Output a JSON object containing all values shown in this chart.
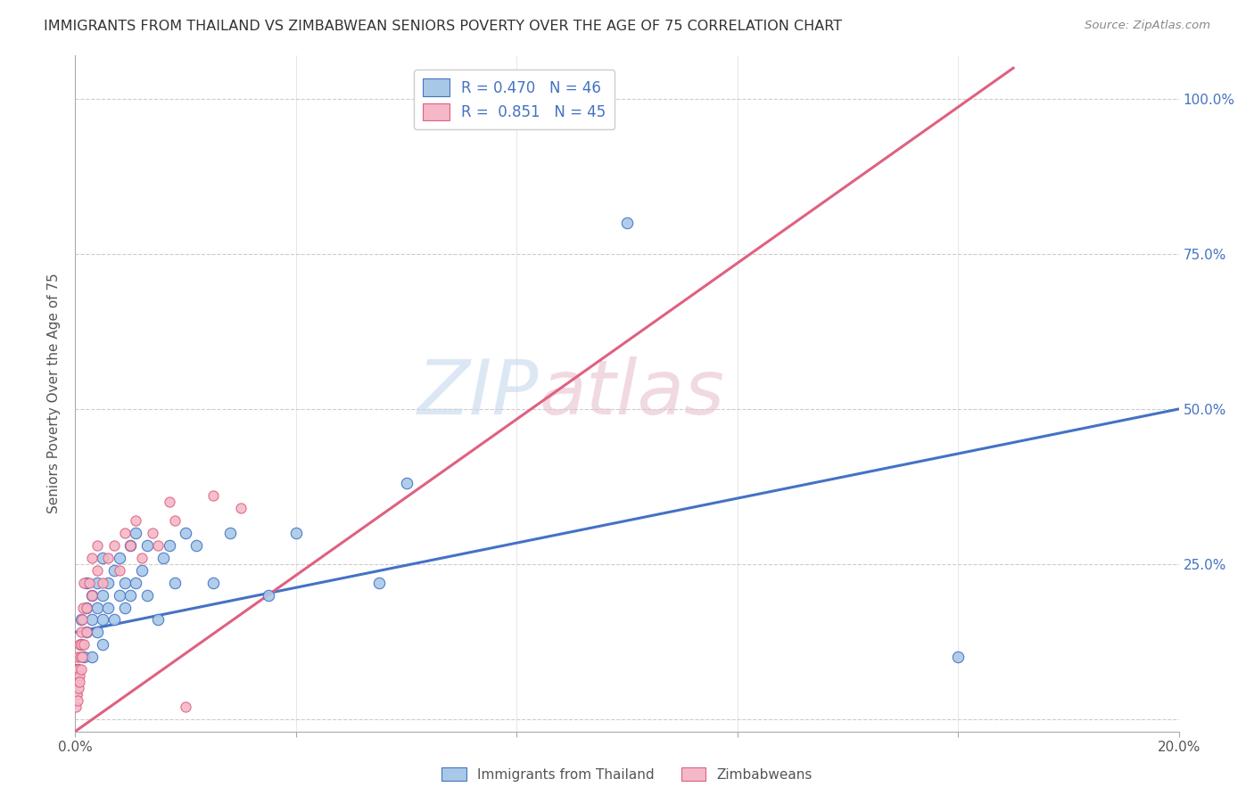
{
  "title": "IMMIGRANTS FROM THAILAND VS ZIMBABWEAN SENIORS POVERTY OVER THE AGE OF 75 CORRELATION CHART",
  "source_text": "Source: ZipAtlas.com",
  "ylabel": "Seniors Poverty Over the Age of 75",
  "legend_labels": [
    "Immigrants from Thailand",
    "Zimbabweans"
  ],
  "R_thailand": 0.47,
  "N_thailand": 46,
  "R_zimbabwe": 0.851,
  "N_zimbabwe": 45,
  "blue_scatter_color": "#a8c8e8",
  "pink_scatter_color": "#f4b8c8",
  "blue_line_color": "#4472c4",
  "pink_line_color": "#e06080",
  "right_axis_color": "#4472c4",
  "xlim": [
    0.0,
    0.2
  ],
  "ylim": [
    -0.02,
    1.07
  ],
  "yticks": [
    0.0,
    0.25,
    0.5,
    0.75,
    1.0
  ],
  "xticks": [
    0.0,
    0.04,
    0.08,
    0.12,
    0.16,
    0.2
  ],
  "thailand_x": [
    0.0005,
    0.001,
    0.001,
    0.0015,
    0.002,
    0.002,
    0.002,
    0.003,
    0.003,
    0.003,
    0.004,
    0.004,
    0.004,
    0.005,
    0.005,
    0.005,
    0.005,
    0.006,
    0.006,
    0.007,
    0.007,
    0.008,
    0.008,
    0.009,
    0.009,
    0.01,
    0.01,
    0.011,
    0.011,
    0.012,
    0.013,
    0.013,
    0.015,
    0.016,
    0.017,
    0.018,
    0.02,
    0.022,
    0.025,
    0.028,
    0.035,
    0.04,
    0.055,
    0.06,
    0.1,
    0.16
  ],
  "thailand_y": [
    0.08,
    0.12,
    0.16,
    0.1,
    0.14,
    0.18,
    0.22,
    0.1,
    0.16,
    0.2,
    0.14,
    0.18,
    0.22,
    0.12,
    0.16,
    0.2,
    0.26,
    0.18,
    0.22,
    0.16,
    0.24,
    0.2,
    0.26,
    0.18,
    0.22,
    0.2,
    0.28,
    0.22,
    0.3,
    0.24,
    0.2,
    0.28,
    0.16,
    0.26,
    0.28,
    0.22,
    0.3,
    0.28,
    0.22,
    0.3,
    0.2,
    0.3,
    0.22,
    0.38,
    0.8,
    0.1
  ],
  "zimbabwe_x": [
    0.0001,
    0.0002,
    0.0002,
    0.0003,
    0.0003,
    0.0004,
    0.0004,
    0.0005,
    0.0005,
    0.0006,
    0.0006,
    0.0007,
    0.0007,
    0.0008,
    0.0009,
    0.001,
    0.001,
    0.0011,
    0.0012,
    0.0013,
    0.0014,
    0.0015,
    0.0016,
    0.002,
    0.002,
    0.0025,
    0.003,
    0.003,
    0.004,
    0.004,
    0.005,
    0.006,
    0.007,
    0.008,
    0.009,
    0.01,
    0.011,
    0.012,
    0.014,
    0.015,
    0.017,
    0.018,
    0.02,
    0.025,
    0.03
  ],
  "zimbabwe_y": [
    0.02,
    0.04,
    0.06,
    0.04,
    0.08,
    0.03,
    0.07,
    0.06,
    0.1,
    0.05,
    0.08,
    0.07,
    0.12,
    0.06,
    0.1,
    0.08,
    0.14,
    0.12,
    0.1,
    0.16,
    0.18,
    0.12,
    0.22,
    0.14,
    0.18,
    0.22,
    0.2,
    0.26,
    0.24,
    0.28,
    0.22,
    0.26,
    0.28,
    0.24,
    0.3,
    0.28,
    0.32,
    0.26,
    0.3,
    0.28,
    0.35,
    0.32,
    0.02,
    0.36,
    0.34
  ],
  "blue_line_x0": 0.0,
  "blue_line_y0": 0.14,
  "blue_line_x1": 0.2,
  "blue_line_y1": 0.5,
  "pink_line_x0": 0.0,
  "pink_line_y0": -0.02,
  "pink_line_x1": 0.17,
  "pink_line_y1": 1.05
}
